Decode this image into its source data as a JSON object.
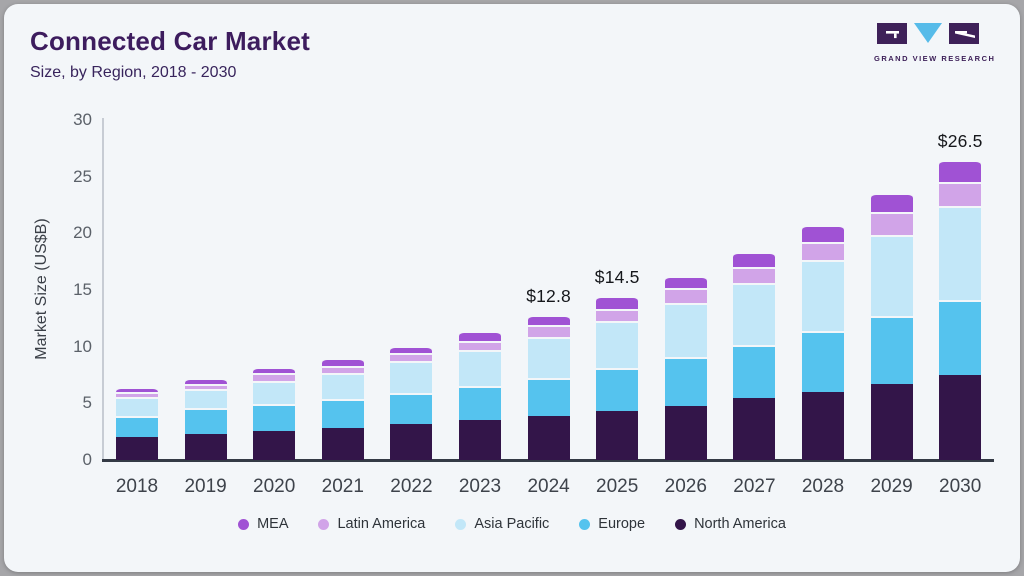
{
  "header": {
    "title": "Connected Car Market",
    "subtitle": "Size, by Region, 2018 - 2030",
    "brand": "GRAND VIEW RESEARCH"
  },
  "colors": {
    "card_bg": "#f3f6f9",
    "outer_bg": "#a6a6a9",
    "title_text": "#3d1c5e",
    "axis_line": "#c7ccd4",
    "baseline": "#343a45",
    "tick_text": "#5b6169",
    "logo_purple": "#3e2159",
    "logo_cyan": "#56bbe9"
  },
  "chart_data": {
    "type": "bar",
    "stacked": true,
    "title": "Connected Car Market",
    "subtitle": "Size, by Region, 2018 - 2030",
    "xlabel": "",
    "ylabel": "Market Size (US$B)",
    "ylim": [
      0,
      30
    ],
    "yticks": [
      0,
      5,
      10,
      15,
      20,
      25,
      30
    ],
    "grid": false,
    "legend_position": "bottom",
    "categories": [
      "2018",
      "2019",
      "2020",
      "2021",
      "2022",
      "2023",
      "2024",
      "2025",
      "2026",
      "2027",
      "2028",
      "2029",
      "2030"
    ],
    "series": [
      {
        "name": "North America",
        "color": "#331549",
        "values": [
          2.0,
          2.3,
          2.6,
          2.85,
          3.2,
          3.5,
          3.9,
          4.3,
          4.8,
          5.5,
          6.0,
          6.7,
          7.5
        ]
      },
      {
        "name": "Europe",
        "color": "#55c3ee",
        "values": [
          1.9,
          2.3,
          2.3,
          2.5,
          2.75,
          3.0,
          3.35,
          3.8,
          4.25,
          4.65,
          5.4,
          6.05,
          6.65
        ]
      },
      {
        "name": "Asia Pacific",
        "color": "#c2e7f8",
        "values": [
          1.65,
          1.65,
          2.1,
          2.35,
          2.8,
          3.2,
          3.6,
          4.2,
          4.8,
          5.5,
          6.25,
          7.1,
          8.3
        ]
      },
      {
        "name": "Latin America",
        "color": "#d1a4e8",
        "values": [
          0.45,
          0.5,
          0.65,
          0.6,
          0.65,
          0.8,
          1.05,
          1.05,
          1.35,
          1.4,
          1.6,
          2.0,
          2.05
        ]
      },
      {
        "name": "MEA",
        "color": "#a052d4",
        "values": [
          0.45,
          0.5,
          0.55,
          0.7,
          0.7,
          0.9,
          0.9,
          1.15,
          1.05,
          1.3,
          1.45,
          1.7,
          2.0
        ]
      }
    ],
    "totals": [
      6.45,
      7.25,
      8.2,
      9.0,
      10.1,
      11.4,
      12.8,
      14.5,
      16.25,
      18.35,
      20.7,
      23.55,
      26.5
    ],
    "annotations": [
      {
        "category": "2024",
        "text": "$12.8"
      },
      {
        "category": "2025",
        "text": "$14.5"
      },
      {
        "category": "2030",
        "text": "$26.5"
      }
    ],
    "legend": [
      {
        "label": "MEA",
        "color": "#a052d4"
      },
      {
        "label": "Latin America",
        "color": "#d1a4e8"
      },
      {
        "label": "Asia Pacific",
        "color": "#c2e7f8"
      },
      {
        "label": "Europe",
        "color": "#55c3ee"
      },
      {
        "label": "North America",
        "color": "#331549"
      }
    ]
  }
}
